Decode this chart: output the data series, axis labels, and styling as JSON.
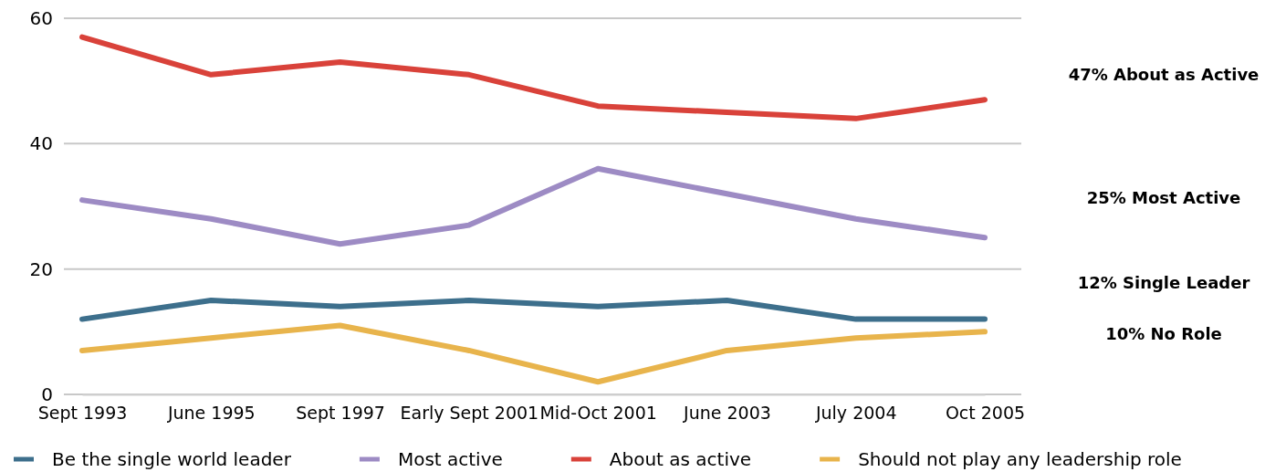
{
  "chart_data": {
    "type": "line",
    "categories": [
      "Sept 1993",
      "June 1995",
      "Sept 1997",
      "Early Sept 2001",
      "Mid-Oct 2001",
      "June 2003",
      "July 2004",
      "Oct 2005"
    ],
    "series": [
      {
        "name": "Be the single world leader",
        "color": "#3d6f8c",
        "values": [
          12,
          15,
          14,
          15,
          14,
          15,
          12,
          12
        ]
      },
      {
        "name": "Most active",
        "color": "#9d8bc4",
        "values": [
          31,
          28,
          24,
          27,
          36,
          32,
          28,
          25
        ]
      },
      {
        "name": "About as active",
        "color": "#d9423a",
        "values": [
          57,
          51,
          53,
          51,
          46,
          45,
          44,
          47
        ]
      },
      {
        "name": "Should not play any leadership role",
        "color": "#e8b44c",
        "values": [
          7,
          9,
          11,
          7,
          2,
          7,
          9,
          10
        ]
      }
    ],
    "ylim": [
      0,
      60
    ],
    "yticks": [
      0,
      20,
      40,
      60
    ],
    "grid": "y",
    "legend": "bottom",
    "marker": "none",
    "line_style": "solid",
    "annotations": [
      "47% About as Active",
      "25% Most Active",
      "12% Single Leader",
      "10% No Role"
    ]
  }
}
